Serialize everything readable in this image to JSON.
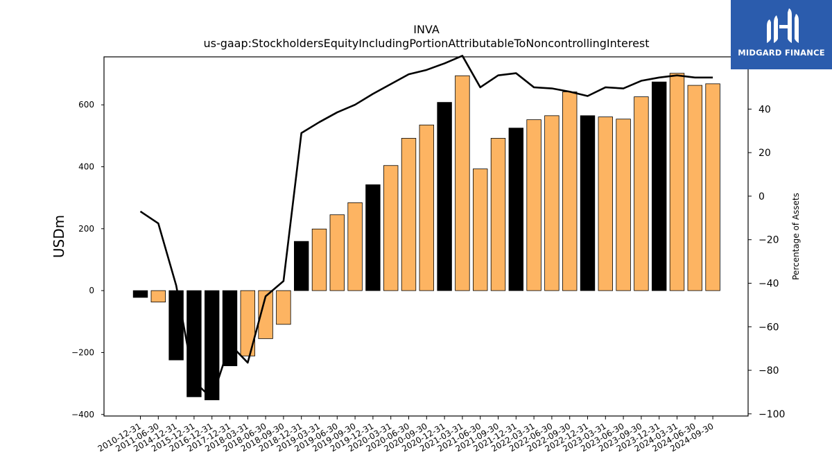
{
  "logo": {
    "text": "MIDGARD FINANCE",
    "background": "#2b5cad"
  },
  "chart_data": {
    "type": "bar",
    "title": "INVA",
    "subtitle": "us-gaap:StockholdersEquityIncludingPortionAttributableToNoncontrollingInterest",
    "ylabel": "USDm",
    "ylabel_right": "Percentage of Assets",
    "ylim": [
      -405,
      755
    ],
    "ylim_right": [
      -101,
      64
    ],
    "yticks": [
      -400,
      -200,
      0,
      200,
      400,
      600
    ],
    "yticks_right": [
      -100,
      -80,
      -60,
      -40,
      -20,
      0,
      20,
      40,
      60
    ],
    "grid": false,
    "categories": [
      "2010-12-31",
      "2011-06-30",
      "2014-12-31",
      "2015-12-31",
      "2016-12-31",
      "2017-12-31",
      "2018-03-31",
      "2018-06-30",
      "2018-09-30",
      "2018-12-31",
      "2019-03-31",
      "2019-06-30",
      "2019-09-30",
      "2019-12-31",
      "2020-03-31",
      "2020-06-30",
      "2020-09-30",
      "2020-12-31",
      "2021-03-31",
      "2021-06-30",
      "2021-09-30",
      "2021-12-31",
      "2022-03-31",
      "2022-06-30",
      "2022-09-30",
      "2022-12-31",
      "2023-03-31",
      "2023-06-30",
      "2023-09-30",
      "2023-12-31",
      "2024-03-31",
      "2024-06-30",
      "2024-09-30"
    ],
    "series": [
      {
        "kind": "bar",
        "values": [
          -22,
          -37,
          -224,
          -343,
          -353,
          -243,
          -211,
          -155,
          -109,
          159,
          199,
          245,
          284,
          342,
          404,
          492,
          535,
          608,
          694,
          393,
          492,
          525,
          552,
          565,
          642,
          565,
          561,
          554,
          626,
          674,
          702,
          663,
          668
        ],
        "colors": [
          "#000000",
          "#fdb462",
          "#000000",
          "#000000",
          "#000000",
          "#000000",
          "#fdb462",
          "#fdb462",
          "#fdb462",
          "#000000",
          "#fdb462",
          "#fdb462",
          "#fdb462",
          "#000000",
          "#fdb462",
          "#fdb462",
          "#fdb462",
          "#000000",
          "#fdb462",
          "#fdb462",
          "#fdb462",
          "#000000",
          "#fdb462",
          "#fdb462",
          "#fdb462",
          "#000000",
          "#fdb462",
          "#fdb462",
          "#fdb462",
          "#000000",
          "#fdb462",
          "#fdb462",
          "#fdb462"
        ]
      },
      {
        "kind": "line",
        "axis": "right",
        "color": "#000000",
        "values": [
          -7,
          -12.5,
          -41,
          -85,
          -93,
          -68,
          -76.5,
          -46,
          -39,
          29,
          34,
          38.5,
          42,
          47,
          51.5,
          56,
          58,
          61,
          64.5,
          50,
          55.5,
          56.5,
          50,
          49.5,
          48,
          46,
          50,
          49.5,
          53,
          54.5,
          55.5,
          54.5,
          54.5
        ]
      }
    ]
  }
}
